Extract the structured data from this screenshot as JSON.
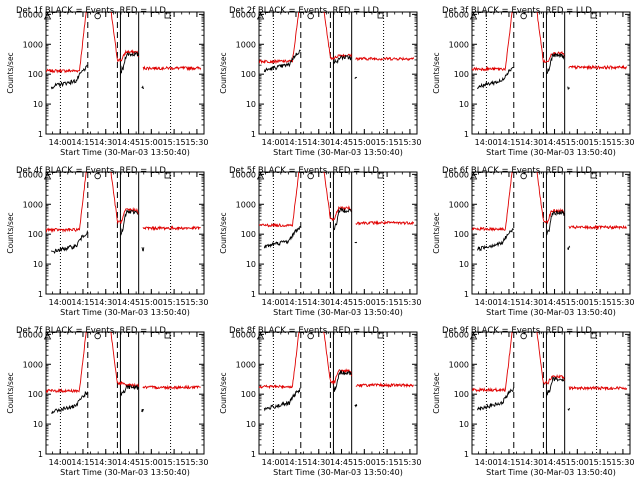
{
  "chart_data": {
    "type": "line",
    "shared": {
      "xlabel": "Start Time (30-Mar-03 13:50:40)",
      "ylabel": "Counts/sec",
      "x_tick_labels": [
        "14:00",
        "14:15",
        "14:30",
        "14:45",
        "15:00",
        "15:15",
        "15:30"
      ],
      "x_ticks_min": [
        9.33,
        24.33,
        39.33,
        54.33,
        69.33,
        84.33,
        99.33
      ],
      "xlim_min": [
        0,
        104
      ],
      "y_tick_labels": [
        "1",
        "10",
        "100",
        "1000",
        "10000"
      ],
      "ylog": true,
      "ylim": [
        1,
        12000
      ],
      "vlines_min": {
        "dotted": [
          9.5,
          82.0
        ],
        "dashed": [
          27.5,
          47.0
        ],
        "solid": [
          49.0,
          61.0
        ]
      },
      "markers": {
        "triangle_x": 1,
        "circle_x": 34,
        "square_x": 80
      }
    },
    "panels": [
      {
        "title": "Det 1f BLACK = Events, RED = LLD",
        "flare_peak_min": [
          28,
          41
        ],
        "red": {
          "pre": 130,
          "post": 160,
          "dip": 300
        },
        "black": {
          "pre": 60,
          "post": 150
        },
        "bump": [
          50,
          60,
          550
        ]
      },
      {
        "title": "Det 2f BLACK = Events, RED = LLD",
        "flare_peak_min": [
          28,
          41
        ],
        "red": {
          "pre": 270,
          "post": 330,
          "dip": 350
        },
        "black": {
          "pre": 210,
          "post": 290
        },
        "bump": [
          50,
          60,
          430
        ]
      },
      {
        "title": "Det 3f BLACK = Events, RED = LLD",
        "flare_peak_min": [
          28,
          41
        ],
        "red": {
          "pre": 150,
          "post": 170,
          "dip": 260
        },
        "black": {
          "pre": 60,
          "post": 140
        },
        "bump": [
          50,
          60,
          500
        ]
      },
      {
        "title": "Det 4f BLACK = Events, RED = LLD",
        "flare_peak_min": [
          28,
          41
        ],
        "red": {
          "pre": 140,
          "post": 160,
          "dip": 260
        },
        "black": {
          "pre": 40,
          "post": 130
        },
        "bump": [
          50,
          60,
          650
        ]
      },
      {
        "title": "Det 5f BLACK = Events, RED = LLD",
        "flare_peak_min": [
          28,
          41
        ],
        "red": {
          "pre": 200,
          "post": 240,
          "dip": 320
        },
        "black": {
          "pre": 60,
          "post": 200
        },
        "bump": [
          50,
          60,
          750
        ]
      },
      {
        "title": "Det 6f BLACK = Events, RED = LLD",
        "flare_peak_min": [
          28,
          41
        ],
        "red": {
          "pre": 150,
          "post": 170,
          "dip": 270
        },
        "black": {
          "pre": 50,
          "post": 140
        },
        "bump": [
          50,
          60,
          600
        ]
      },
      {
        "title": "Det 7f BLACK = Events, RED = LLD",
        "flare_peak_min": [
          28,
          41
        ],
        "red": {
          "pre": 130,
          "post": 170,
          "dip": 230
        },
        "black": {
          "pre": 40,
          "post": 120
        },
        "bump": [
          50,
          60,
          200
        ]
      },
      {
        "title": "Det 8f BLACK = Events, RED = LLD",
        "flare_peak_min": [
          28,
          41
        ],
        "red": {
          "pre": 180,
          "post": 200,
          "dip": 260
        },
        "black": {
          "pre": 50,
          "post": 170
        },
        "bump": [
          50,
          60,
          600
        ]
      },
      {
        "title": "Det 9f BLACK = Events, RED = LLD",
        "flare_peak_min": [
          28,
          41
        ],
        "red": {
          "pre": 140,
          "post": 160,
          "dip": 240
        },
        "black": {
          "pre": 50,
          "post": 130
        },
        "bump": [
          50,
          60,
          380
        ]
      }
    ],
    "colors": {
      "lld": "#e00000",
      "events": "#000000",
      "axes": "#000000"
    }
  }
}
